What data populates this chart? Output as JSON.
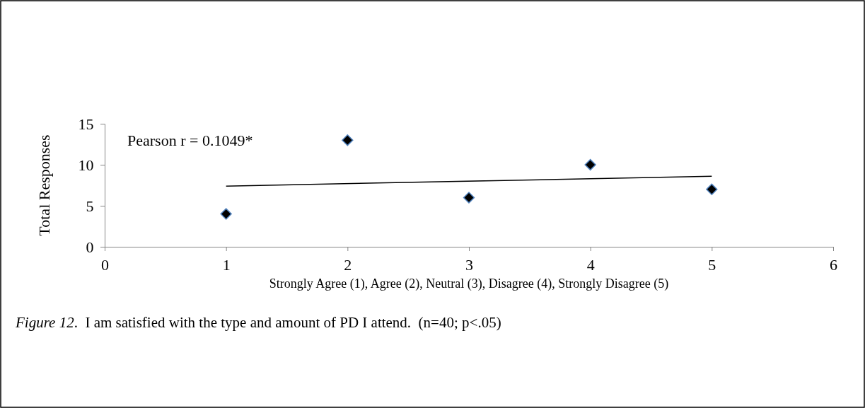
{
  "chart_data": {
    "type": "scatter",
    "ylabel": "Total Responses",
    "xlabel": "Strongly Agree (1), Agree (2), Neutral (3), Disagree (4), Strongly Disagree (5)",
    "x": [
      1,
      2,
      3,
      4,
      5
    ],
    "series": [
      {
        "color": "#000000",
        "values": [
          4,
          13,
          6,
          10,
          7
        ]
      },
      {
        "type": "line",
        "marker": "none",
        "color": "#000000",
        "x": [
          1,
          5
        ],
        "values": [
          7.4,
          8.6
        ]
      }
    ],
    "xlim": [
      0,
      6
    ],
    "xticks": [
      0,
      1,
      2,
      3,
      4,
      5,
      6
    ],
    "ylim": [
      0,
      15
    ],
    "yticks": [
      0,
      5,
      10,
      15
    ],
    "marker": "diamond",
    "grid": false,
    "annotations": [
      "Pearson r = 0.1049*",
      "Figure 12.  I am satisfied with the type and amount of PD I attend.  (n=40; p<.05)"
    ]
  }
}
